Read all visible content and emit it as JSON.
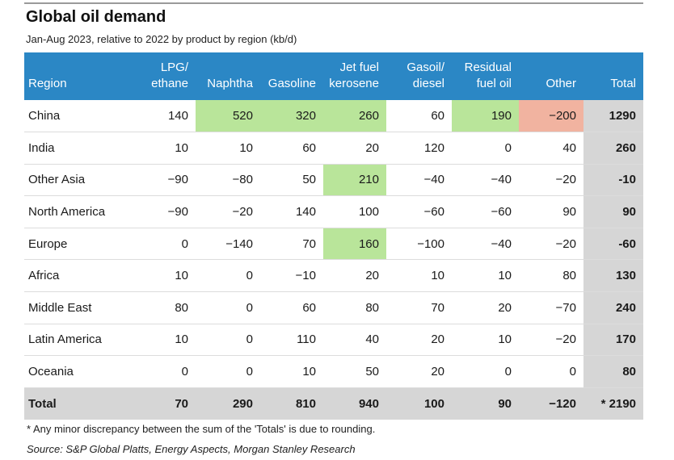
{
  "title": "Global oil demand",
  "subtitle": "Jan-Aug 2023, relative to 2022 by product by region (kb/d)",
  "footnote": "* Any minor discrepancy between the sum of the 'Totals' is due to rounding.",
  "source": "Source: S&P Global Platts, Energy Aspects, Morgan Stanley Research",
  "colors": {
    "header": "#2b87c5",
    "highlight_green": "#b9e59a",
    "highlight_red": "#f1b3a0",
    "total_fill": "#d6d6d6"
  },
  "chart_data": {
    "type": "table",
    "columns": [
      {
        "l1": "",
        "l2": "Region"
      },
      {
        "l1": "LPG/",
        "l2": "ethane"
      },
      {
        "l1": "",
        "l2": "Naphtha"
      },
      {
        "l1": "",
        "l2": "Gasoline"
      },
      {
        "l1": "Jet fuel",
        "l2": "kerosene"
      },
      {
        "l1": "Gasoil/",
        "l2": "diesel"
      },
      {
        "l1": "Residual",
        "l2": "fuel oil"
      },
      {
        "l1": "",
        "l2": "Other"
      },
      {
        "l1": "",
        "l2": "Total"
      }
    ],
    "rows": [
      {
        "region": "China",
        "values": [
          "140",
          "520",
          "320",
          "260",
          "60",
          "190",
          "−200"
        ],
        "total": "1290",
        "highlight": [
          "",
          "green",
          "green",
          "green",
          "",
          "green",
          "red"
        ]
      },
      {
        "region": "India",
        "values": [
          "10",
          "10",
          "60",
          "20",
          "120",
          "0",
          "40"
        ],
        "total": "260",
        "highlight": [
          "",
          "",
          "",
          "",
          "",
          "",
          ""
        ]
      },
      {
        "region": "Other Asia",
        "values": [
          "−90",
          "−80",
          "50",
          "210",
          "−40",
          "−40",
          "−20"
        ],
        "total": "-10",
        "highlight": [
          "",
          "",
          "",
          "green",
          "",
          "",
          ""
        ]
      },
      {
        "region": "North America",
        "values": [
          "−90",
          "−20",
          "140",
          "100",
          "−60",
          "−60",
          "90"
        ],
        "total": "90",
        "highlight": [
          "",
          "",
          "",
          "",
          "",
          "",
          ""
        ]
      },
      {
        "region": "Europe",
        "values": [
          "0",
          "−140",
          "70",
          "160",
          "−100",
          "−40",
          "−20"
        ],
        "total": "-60",
        "highlight": [
          "",
          "",
          "",
          "green",
          "",
          "",
          ""
        ]
      },
      {
        "region": "Africa",
        "values": [
          "10",
          "0",
          "−10",
          "20",
          "10",
          "10",
          "80"
        ],
        "total": "130",
        "highlight": [
          "",
          "",
          "",
          "",
          "",
          "",
          ""
        ]
      },
      {
        "region": "Middle East",
        "values": [
          "80",
          "0",
          "60",
          "80",
          "70",
          "20",
          "−70"
        ],
        "total": "240",
        "highlight": [
          "",
          "",
          "",
          "",
          "",
          "",
          ""
        ]
      },
      {
        "region": "Latin America",
        "values": [
          "10",
          "0",
          "110",
          "40",
          "20",
          "10",
          "−20"
        ],
        "total": "170",
        "highlight": [
          "",
          "",
          "",
          "",
          "",
          "",
          ""
        ]
      },
      {
        "region": "Oceania",
        "values": [
          "0",
          "0",
          "10",
          "50",
          "20",
          "0",
          "0"
        ],
        "total": "80",
        "highlight": [
          "",
          "",
          "",
          "",
          "",
          "",
          ""
        ]
      }
    ],
    "total_row": {
      "label": "Total",
      "values": [
        "70",
        "290",
        "810",
        "940",
        "100",
        "90",
        "−120"
      ],
      "total": "* 2190"
    }
  }
}
